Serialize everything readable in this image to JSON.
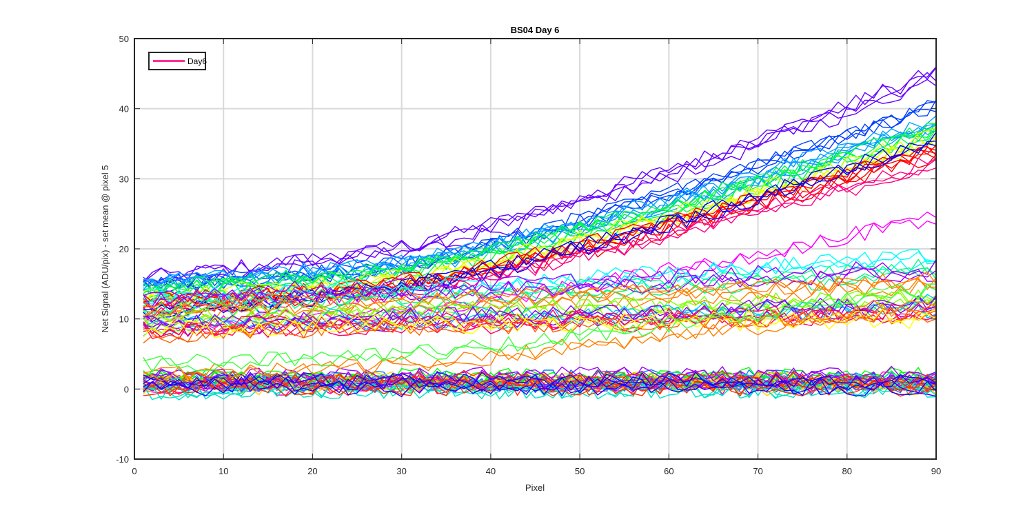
{
  "chart_data": {
    "type": "line",
    "title": "BS04 Day 6",
    "xlabel": "Pixel",
    "ylabel": "Net Signal (ADU/pix) - set mean @ pixel 5",
    "xlim": [
      0,
      90
    ],
    "ylim": [
      -10,
      50
    ],
    "xticks": [
      0,
      10,
      20,
      30,
      40,
      50,
      60,
      70,
      80,
      90
    ],
    "yticks": [
      -10,
      0,
      10,
      20,
      30,
      40,
      50
    ],
    "xtick_labels": [
      "0",
      "10",
      "20",
      "30",
      "40",
      "50",
      "60",
      "70",
      "80",
      "90"
    ],
    "ytick_labels": [
      "-10",
      "0",
      "10",
      "20",
      "30",
      "40",
      "50"
    ],
    "grid": true,
    "legend": {
      "placement": "top-left",
      "entries": [
        {
          "label": "Day6",
          "color": "#ff0080"
        }
      ]
    },
    "x_range_of_series": [
      1,
      90
    ],
    "noise_amplitude": 1.2,
    "series_groups": [
      {
        "name": "",
        "color": "#6600ff",
        "count": 4,
        "y_at_x1": 15.5,
        "y_at_x25": 19,
        "y_at_x90": 45
      },
      {
        "name": "",
        "color": "#0040ff",
        "count": 4,
        "y_at_x1": 15,
        "y_at_x25": 17,
        "y_at_x90": 41
      },
      {
        "name": "",
        "color": "#00a0ff",
        "count": 6,
        "y_at_x1": 15,
        "y_at_x25": 17,
        "y_at_x90": 38
      },
      {
        "name": "",
        "color": "#00ff40",
        "count": 5,
        "y_at_x1": 14,
        "y_at_x25": 16,
        "y_at_x90": 37
      },
      {
        "name": "",
        "color": "#e0ff00",
        "count": 5,
        "y_at_x1": 13,
        "y_at_x25": 15,
        "y_at_x90": 36
      },
      {
        "name": "",
        "color": "#ff0000",
        "count": 6,
        "y_at_x1": 12,
        "y_at_x25": 14,
        "y_at_x90": 34
      },
      {
        "name": "",
        "color": "#ff0080",
        "count": 3,
        "y_at_x1": 11,
        "y_at_x25": 13,
        "y_at_x90": 32
      },
      {
        "name": "",
        "color": "#0000ff",
        "count": 3,
        "y_at_x1": 10,
        "y_at_x25": 13,
        "y_at_x90": 35
      },
      {
        "name": "",
        "color": "#ff00ff",
        "count": 2,
        "y_at_x1": 10,
        "y_at_x25": 11,
        "y_at_x90": 25
      },
      {
        "name": "",
        "color": "#00ffff",
        "count": 3,
        "y_at_x1": 13,
        "y_at_x25": 14,
        "y_at_x90": 19
      },
      {
        "name": "",
        "color": "#00ff80",
        "count": 3,
        "y_at_x1": 12,
        "y_at_x25": 13,
        "y_at_x90": 17
      },
      {
        "name": "",
        "color": "#9900ff",
        "count": 3,
        "y_at_x1": 13,
        "y_at_x25": 14,
        "y_at_x90": 17
      },
      {
        "name": "",
        "color": "#ff8000",
        "count": 4,
        "y_at_x1": 11,
        "y_at_x25": 12,
        "y_at_x90": 15
      },
      {
        "name": "",
        "color": "#80ff00",
        "count": 4,
        "y_at_x1": 10,
        "y_at_x25": 11,
        "y_at_x90": 13
      },
      {
        "name": "",
        "color": "#00c0ff",
        "count": 3,
        "y_at_x1": 9,
        "y_at_x25": 10,
        "y_at_x90": 12
      },
      {
        "name": "",
        "color": "#8000ff",
        "count": 3,
        "y_at_x1": 9,
        "y_at_x25": 10,
        "y_at_x90": 12
      },
      {
        "name": "",
        "color": "#ff0060",
        "count": 4,
        "y_at_x1": 8,
        "y_at_x25": 9,
        "y_at_x90": 10.5
      },
      {
        "name": "",
        "color": "#ff6000",
        "count": 2,
        "y_at_x1": 8,
        "y_at_x25": 9,
        "y_at_x90": 11
      },
      {
        "name": "",
        "color": "#ffff00",
        "count": 2,
        "y_at_x1": 8.5,
        "y_at_x25": 9,
        "y_at_x90": 10
      },
      {
        "name": "",
        "color": "#ff00c0",
        "count": 6,
        "y_at_x1": 1,
        "y_at_x25": 1,
        "y_at_x90": 1
      },
      {
        "name": "",
        "color": "#0080ff",
        "count": 6,
        "y_at_x1": 0.8,
        "y_at_x25": 0.8,
        "y_at_x90": 0.8
      },
      {
        "name": "",
        "color": "#00ff00",
        "count": 5,
        "y_at_x1": 1.2,
        "y_at_x25": 1,
        "y_at_x90": 1.2
      },
      {
        "name": "",
        "color": "#ffd000",
        "count": 5,
        "y_at_x1": 0.5,
        "y_at_x25": 0.6,
        "y_at_x90": 0.5
      },
      {
        "name": "",
        "color": "#a000ff",
        "count": 5,
        "y_at_x1": 1,
        "y_at_x25": 1.2,
        "y_at_x90": 1.4
      },
      {
        "name": "",
        "color": "#00e0c0",
        "count": 5,
        "y_at_x1": 0.3,
        "y_at_x25": 0.5,
        "y_at_x90": 0.6
      },
      {
        "name": "",
        "color": "#ff3000",
        "count": 5,
        "y_at_x1": 0.7,
        "y_at_x25": 0.9,
        "y_at_x90": 0.8
      },
      {
        "name": "",
        "color": "#2000ff",
        "count": 4,
        "y_at_x1": 0.4,
        "y_at_x25": 0.5,
        "y_at_x90": 0.4
      },
      {
        "name": "",
        "color": "#ff8000",
        "count": 2,
        "y_at_x1": 2.5,
        "y_at_x25": 3.5,
        "y_at_x90": 13
      },
      {
        "name": "",
        "color": "#40ff40",
        "count": 2,
        "y_at_x1": 3,
        "y_at_x25": 4,
        "y_at_x90": 14
      }
    ]
  }
}
